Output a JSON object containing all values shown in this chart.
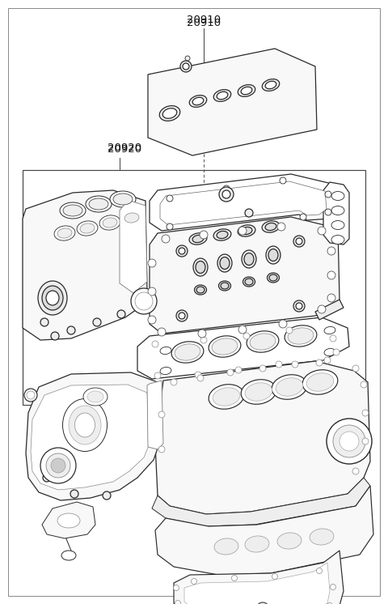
{
  "background_color": "#ffffff",
  "line_color": "#2a2a2a",
  "light_gray": "#f8f8f8",
  "mid_gray": "#eeeeee",
  "label_20910": "20910",
  "label_20920": "20920",
  "fig_width": 4.8,
  "fig_height": 7.46,
  "dpi": 100,
  "lw_main": 0.9,
  "lw_thin": 0.55,
  "lw_border": 0.7
}
